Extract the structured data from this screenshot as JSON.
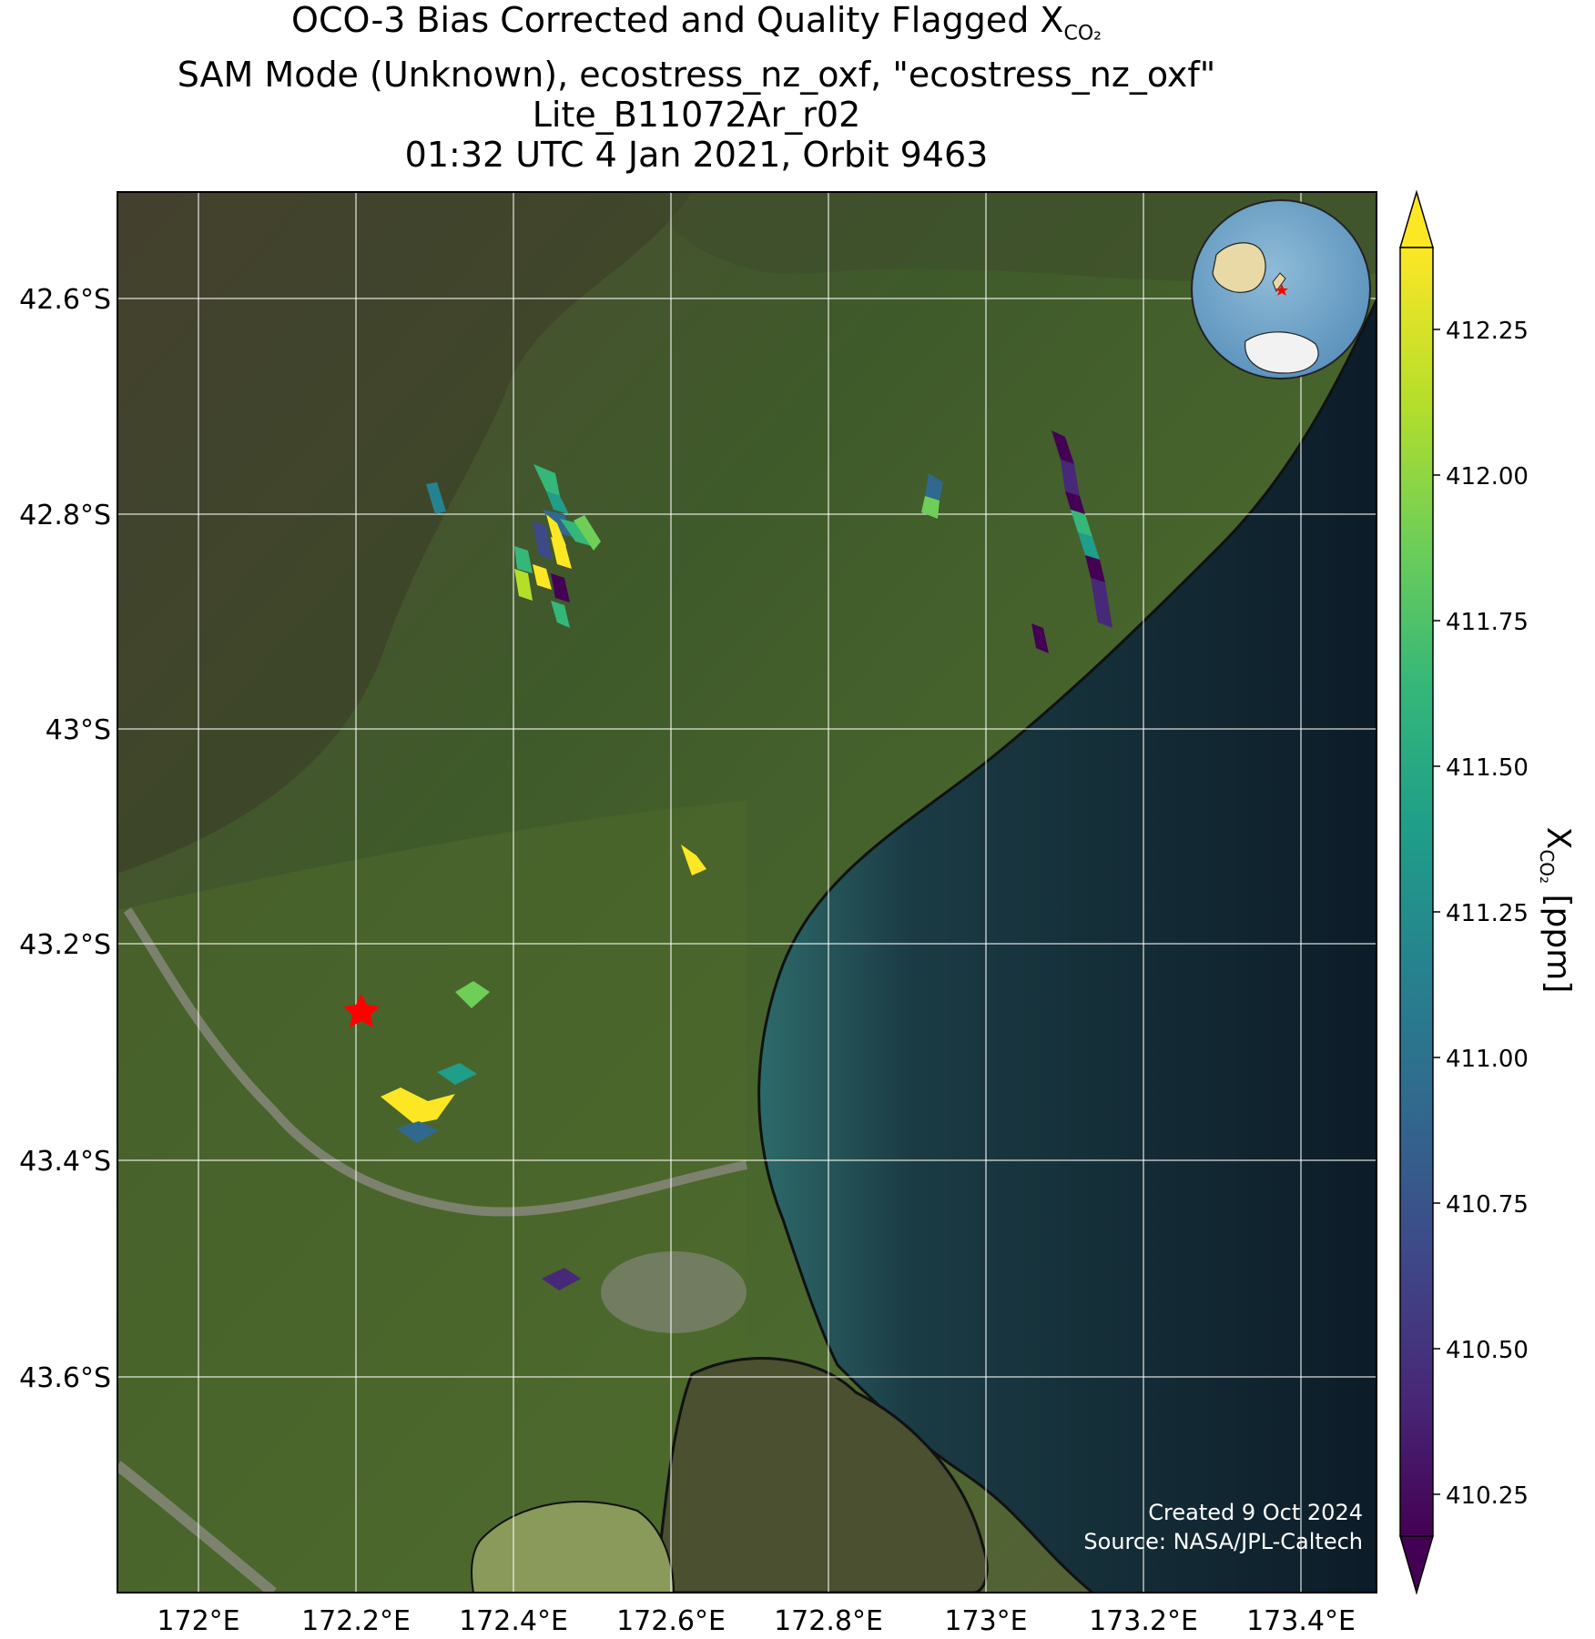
{
  "title": {
    "line1_prefix": "OCO-3 Bias Corrected and Quality Flagged X",
    "line1_sub": "CO2",
    "line2": "SAM Mode (Unknown), ecostress_nz_oxf, \"ecostress_nz_oxf\"",
    "line3": "Lite_B11072Ar_r02",
    "line4": "01:32 UTC 4 Jan 2021, Orbit 9463"
  },
  "map": {
    "lon_ticks": [
      "172°E",
      "172.2°E",
      "172.4°E",
      "172.6°E",
      "172.8°E",
      "173°E",
      "173.2°E",
      "173.4°E"
    ],
    "lat_ticks": [
      "42.6°S",
      "42.8°S",
      "43°S",
      "43.2°S",
      "43.4°S",
      "43.6°S"
    ],
    "target_marker": "red-star",
    "inset": "globe-locator",
    "credit_line1": "Created 9 Oct 2024",
    "credit_line2": "Source: NASA/JPL-Caltech"
  },
  "colorbar": {
    "label_prefix": "X",
    "label_sub": "CO2",
    "label_suffix": " [ppm]",
    "ticks": [
      "412.25",
      "412.00",
      "411.75",
      "411.50",
      "411.25",
      "411.00",
      "410.75",
      "410.50",
      "410.25"
    ],
    "colormap": "viridis"
  },
  "colors": {
    "viridis": [
      "#440154",
      "#482878",
      "#3e4989",
      "#31688e",
      "#26828e",
      "#1f9e89",
      "#35b779",
      "#6ece58",
      "#b5de2b",
      "#fde725"
    ],
    "land": "#4a5a2e",
    "ocean": "#14262e",
    "star": "#ff0000"
  }
}
